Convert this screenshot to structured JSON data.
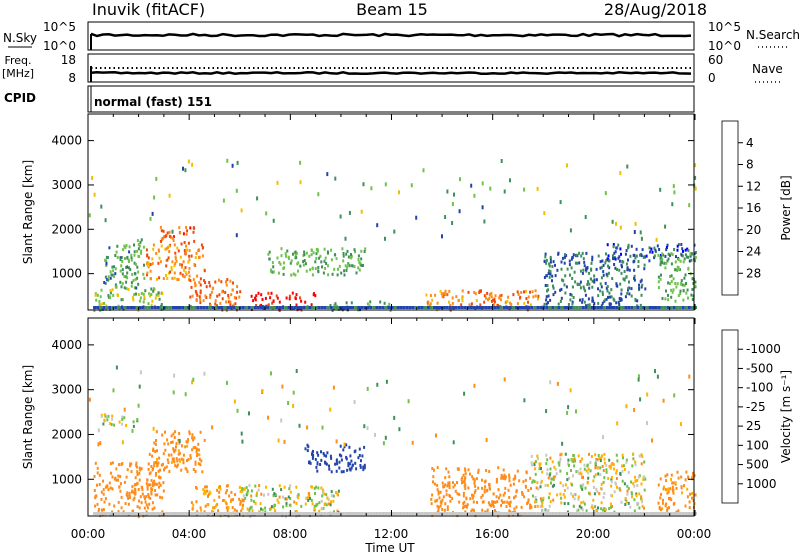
{
  "header": {
    "station": "Inuvik (fitACF)",
    "beam": "Beam 15",
    "date": "28/Aug/2018"
  },
  "top_panels": {
    "nsky_label": "N.Sky",
    "nsky_ticks": [
      "10^5",
      "10^0"
    ],
    "nsearch_label": "N.Search",
    "nsearch_ticks": [
      "10^5",
      "10^0"
    ],
    "freq_label_line1": "Freq.",
    "freq_label_line2": "[MHz]",
    "freq_ticks": [
      "18",
      "8"
    ],
    "nave_label": "Nave",
    "nave_ticks": [
      "60",
      "0"
    ],
    "cpid_label": "CPID",
    "cpid_value": "normal (fast) 151"
  },
  "colors": {
    "power_scale": [
      "#0000ff",
      "#2244aa",
      "#3f8f5a",
      "#6fc24a",
      "#f0c000",
      "#ff8c1a",
      "#f04a0a",
      "#ff0000"
    ],
    "velocity_scale": [
      "#ff0000",
      "#ff5a00",
      "#ff8c1a",
      "#ffb300",
      "#c8c8c8",
      "#6fc24a",
      "#3f8f5a",
      "#2244aa",
      "#0000ff"
    ]
  },
  "chart_data": [
    {
      "type": "heatmap",
      "title": "Power",
      "ylabel": "Slant Range [km]",
      "xlabel": "Time UT",
      "x_ticks": [
        "00:00",
        "04:00",
        "08:00",
        "12:00",
        "16:00",
        "20:00",
        "00:00"
      ],
      "xlim_hours": [
        0,
        24
      ],
      "ylim_km": [
        180,
        4600
      ],
      "y_ticks": [
        1000,
        2000,
        3000,
        4000
      ],
      "colorbar_label": "Power [dB]",
      "colorbar_ticks": [
        "28",
        "24",
        "20",
        "16",
        "12",
        "8",
        "4"
      ],
      "colorbar_range": [
        0,
        32
      ],
      "regions": [
        {
          "t0": 0.2,
          "t1": 3.0,
          "r0": 200,
          "r1": 700,
          "value": 14
        },
        {
          "t0": 0.6,
          "t1": 2.2,
          "r0": 700,
          "r1": 1800,
          "value": 11
        },
        {
          "t0": 2.8,
          "t1": 4.2,
          "r0": 1700,
          "r1": 2100,
          "value": 26
        },
        {
          "t0": 2.2,
          "t1": 4.6,
          "r0": 900,
          "r1": 1700,
          "value": 22
        },
        {
          "t0": 4.0,
          "t1": 6.0,
          "r0": 200,
          "r1": 900,
          "value": 24
        },
        {
          "t0": 6.4,
          "t1": 9.0,
          "r0": 200,
          "r1": 600,
          "value": 30
        },
        {
          "t0": 7.0,
          "t1": 11.0,
          "r0": 1000,
          "r1": 1600,
          "value": 12
        },
        {
          "t0": 9.5,
          "t1": 12.0,
          "r0": 200,
          "r1": 400,
          "value": 10
        },
        {
          "t0": 13.3,
          "t1": 18.0,
          "r0": 200,
          "r1": 650,
          "value": 23
        },
        {
          "t0": 18.0,
          "t1": 22.0,
          "r0": 300,
          "r1": 1500,
          "value": 8
        },
        {
          "t0": 20.5,
          "t1": 24.0,
          "r0": 1300,
          "r1": 1700,
          "value": 6
        },
        {
          "t0": 22.5,
          "t1": 24.0,
          "r0": 400,
          "r1": 1500,
          "value": 12
        }
      ]
    },
    {
      "type": "heatmap",
      "title": "Velocity",
      "ylabel": "Slant Range [km]",
      "xlabel": "Time UT",
      "x_ticks": [
        "00:00",
        "04:00",
        "08:00",
        "12:00",
        "16:00",
        "20:00",
        "00:00"
      ],
      "xlim_hours": [
        0,
        24
      ],
      "ylim_km": [
        180,
        4600
      ],
      "y_ticks": [
        1000,
        2000,
        3000,
        4000
      ],
      "colorbar_label": "Velocity [m s⁻¹]",
      "colorbar_ticks": [
        "1000",
        "500",
        "100",
        "25",
        "-25",
        "-100",
        "-500",
        "-1000"
      ],
      "regions": [
        {
          "t0": 0.2,
          "t1": 3.0,
          "r0": 200,
          "r1": 1400,
          "value": -300
        },
        {
          "t0": 2.4,
          "t1": 4.6,
          "r0": 1200,
          "r1": 2100,
          "value": -200
        },
        {
          "t0": 4.0,
          "t1": 6.2,
          "r0": 200,
          "r1": 900,
          "value": -150
        },
        {
          "t0": 6.0,
          "t1": 10.0,
          "r0": 200,
          "r1": 900,
          "value": 0
        },
        {
          "t0": 8.5,
          "t1": 11.0,
          "r0": 1200,
          "r1": 1800,
          "value": 800
        },
        {
          "t0": 13.5,
          "t1": 17.5,
          "r0": 200,
          "r1": 1300,
          "value": -300
        },
        {
          "t0": 17.5,
          "t1": 22.0,
          "r0": 300,
          "r1": 1600,
          "value": 0
        },
        {
          "t0": 22.5,
          "t1": 24.0,
          "r0": 300,
          "r1": 1200,
          "value": -200
        },
        {
          "t0": 0.5,
          "t1": 2.0,
          "r0": 2200,
          "r1": 2500,
          "value": 50
        }
      ]
    }
  ]
}
